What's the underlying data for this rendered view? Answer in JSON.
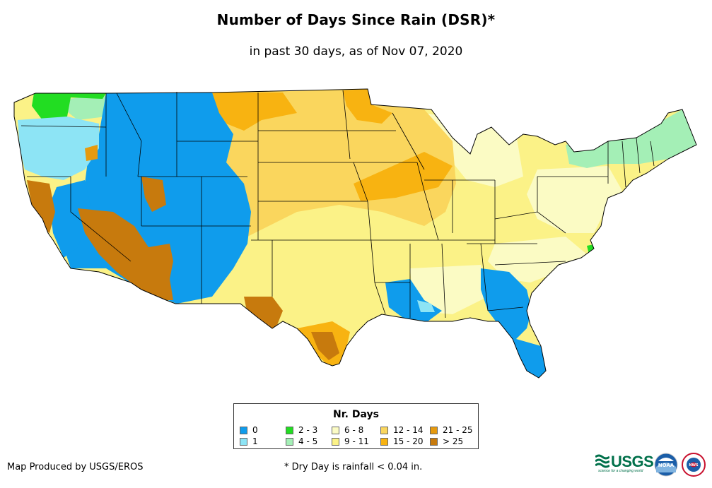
{
  "title": "Number of Days Since Rain (DSR)*",
  "subtitle": "in past 30 days, as of Nov 07, 2020",
  "legend": {
    "title": "Nr. Days",
    "items": [
      {
        "label": "0",
        "color": "#0f9cec"
      },
      {
        "label": "1",
        "color": "#8de4f5"
      },
      {
        "label": "2 - 3",
        "color": "#22dd22"
      },
      {
        "label": "4 - 5",
        "color": "#a4efb6"
      },
      {
        "label": "6 - 8",
        "color": "#fbfbc4"
      },
      {
        "label": "9 - 11",
        "color": "#fbf287"
      },
      {
        "label": "12 - 14",
        "color": "#fad65d"
      },
      {
        "label": "15 - 20",
        "color": "#f8b311"
      },
      {
        "label": "21 - 25",
        "color": "#e69a0e"
      },
      {
        "label": "> 25",
        "color": "#c77a0d"
      }
    ]
  },
  "footer": {
    "credit": "Map Produced by USGS/EROS",
    "footnote": "* Dry Day is rainfall < 0.04 in."
  },
  "logos": {
    "usgs_text": "USGS",
    "usgs_tagline": "science for a changing world",
    "noaa_text": "NOAA",
    "nws_text": "NWS"
  }
}
